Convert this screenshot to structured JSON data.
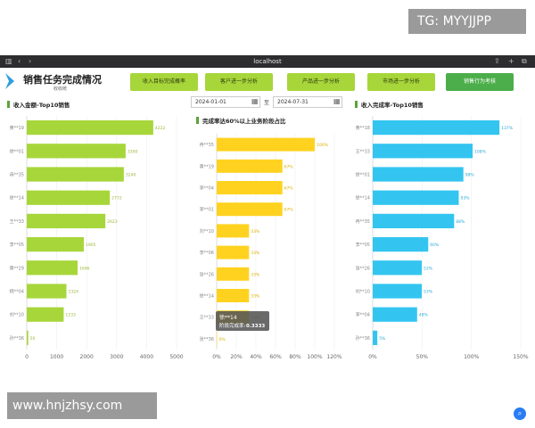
{
  "watermarks": {
    "top": "TG: MYYJJPP",
    "bottom": "www.hnjzhsy.com"
  },
  "browser": {
    "url": "localhost"
  },
  "header": {
    "title": "销售任务完成情况",
    "subtitle": "收收统",
    "nav": [
      "收入目标完成概率",
      "客户进一步分析",
      "产品进一步分析",
      "市场进一步分析",
      "销售行为考核"
    ]
  },
  "filters": {
    "start_date": "2024-01-01",
    "end_date": "2024-07-31",
    "separator": "至"
  },
  "tooltip": {
    "name": "徐**14",
    "label": "阶段完成率:",
    "value": "0.3333"
  },
  "colors": {
    "lime": "#a7d63a",
    "yellow": "#ffd21f",
    "cyan": "#33c5f0",
    "active_nav": "#4cae4a"
  },
  "chart_data": [
    {
      "type": "bar",
      "title": "收入金额-Top10销售",
      "categories": [
        "黄**19",
        "徐**01",
        "冉**35",
        "徐**14",
        "王**33",
        "李**05",
        "黄**29",
        "杨**04",
        "刘**10",
        "孙**36"
      ],
      "values": [
        4222,
        3300,
        3240,
        2772,
        2623,
        1905,
        1696,
        1324,
        1233,
        50
      ],
      "value_labels": [
        "4222",
        "3300",
        "3240",
        "2772",
        "2623",
        "1905",
        "1696",
        "1324",
        "1233",
        "50"
      ],
      "xticks": [
        "0",
        "1000",
        "2000",
        "3000",
        "4000",
        "5000"
      ],
      "xlim": [
        0,
        5000
      ]
    },
    {
      "type": "bar",
      "title": "完成率达60%以上业务阶段占比",
      "categories": [
        "冉**35",
        "黄**19",
        "李**04",
        "李**01",
        "刘**10",
        "李**06",
        "张**26",
        "徐**14",
        "王**33",
        "张**36"
      ],
      "values": [
        100,
        67,
        67,
        67,
        33,
        33,
        33,
        33,
        33,
        0
      ],
      "value_labels": [
        "100%",
        "67%",
        "67%",
        "67%",
        "33%",
        "33%",
        "33%",
        "33%",
        "33%",
        "0%"
      ],
      "xticks": [
        "0%",
        "20%",
        "40%",
        "60%",
        "80%",
        "100%",
        "120%"
      ],
      "xlim": [
        0,
        120
      ]
    },
    {
      "type": "bar",
      "title": "收入完成率-Top10销售",
      "categories": [
        "黄**18",
        "王**33",
        "徐**01",
        "徐**14",
        "冉**35",
        "李**05",
        "张**26",
        "刘**10",
        "李**04",
        "孙**36"
      ],
      "values": [
        137,
        108,
        98,
        93,
        88,
        60,
        53,
        53,
        48,
        5
      ],
      "value_labels": [
        "137%",
        "108%",
        "98%",
        "93%",
        "88%",
        "60%",
        "53%",
        "53%",
        "48%",
        "5%"
      ],
      "xticks": [
        "0%",
        "50%",
        "100%",
        "150%"
      ],
      "xlim": [
        0,
        160
      ]
    }
  ]
}
